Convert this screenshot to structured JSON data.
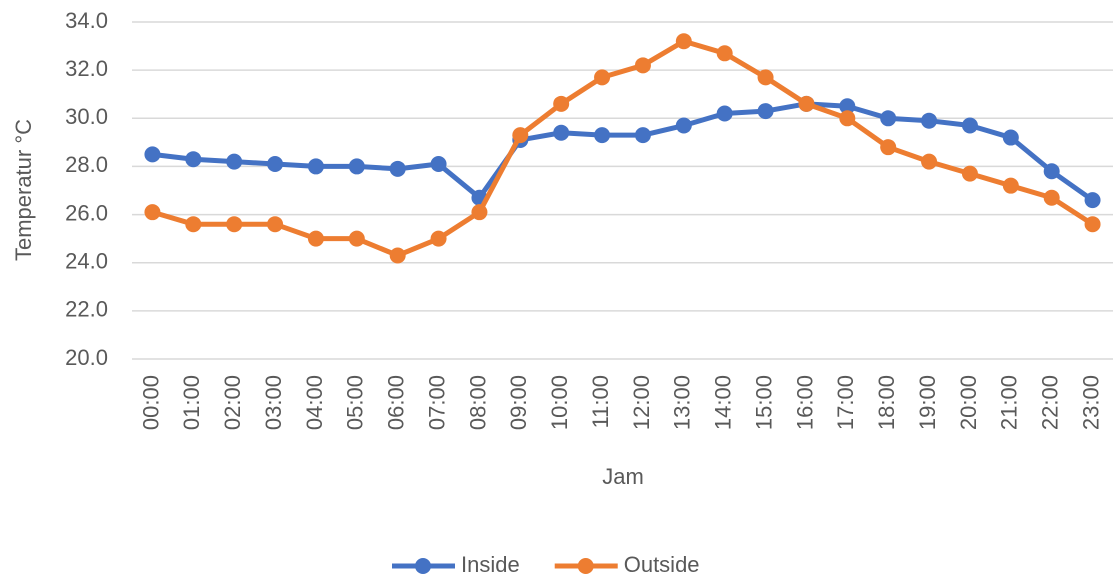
{
  "chart_data": {
    "type": "line",
    "x_label": "Jam",
    "y_label": "Temperatur °C",
    "categories": [
      "00:00",
      "01:00",
      "02:00",
      "03:00",
      "04:00",
      "05:00",
      "06:00",
      "07:00",
      "08:00",
      "09:00",
      "10:00",
      "11:00",
      "12:00",
      "13:00",
      "14:00",
      "15:00",
      "16:00",
      "17:00",
      "18:00",
      "19:00",
      "20:00",
      "21:00",
      "22:00",
      "23:00"
    ],
    "series": [
      {
        "name": "Inside",
        "color": "#4472c4",
        "values": [
          28.5,
          28.3,
          28.2,
          28.1,
          28.0,
          28.0,
          27.9,
          28.1,
          26.7,
          29.1,
          29.4,
          29.3,
          29.3,
          29.7,
          30.2,
          30.3,
          30.6,
          30.5,
          30.0,
          29.9,
          29.7,
          29.2,
          27.8,
          26.6
        ]
      },
      {
        "name": "Outside",
        "color": "#ed7d31",
        "values": [
          26.1,
          25.6,
          25.6,
          25.6,
          25.0,
          25.0,
          24.3,
          25.0,
          26.1,
          29.3,
          30.6,
          31.7,
          32.2,
          33.2,
          32.7,
          31.7,
          30.6,
          30.0,
          28.8,
          28.2,
          27.7,
          27.2,
          26.7,
          25.6
        ]
      }
    ],
    "ylim": [
      20,
      34
    ],
    "yticks": [
      {
        "value": 20,
        "label": "20.0"
      },
      {
        "value": 22,
        "label": "22.0"
      },
      {
        "value": 24,
        "label": "24.0"
      },
      {
        "value": 26,
        "label": "26.0"
      },
      {
        "value": 28,
        "label": "28.0"
      },
      {
        "value": 30,
        "label": "30.0"
      },
      {
        "value": 32,
        "label": "32.0"
      },
      {
        "value": 34,
        "label": "34.0"
      }
    ],
    "grid": true,
    "legend": "bottom"
  }
}
